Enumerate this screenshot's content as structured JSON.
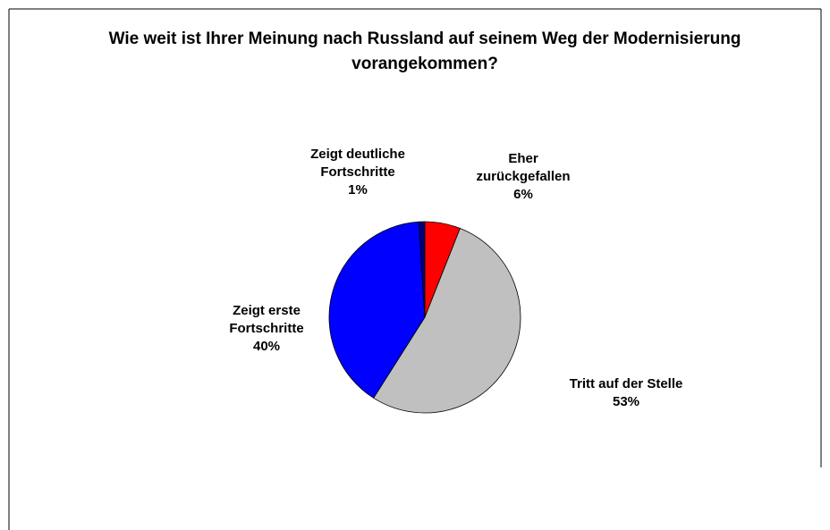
{
  "chart_data": {
    "type": "pie",
    "title": "Wie weit ist Ihrer Meinung nach Russland auf seinem Weg der Modernisierung vorangekommen?",
    "categories": [
      "Eher zurückgefallen",
      "Tritt auf der Stelle",
      "Zeigt erste Fortschritte",
      "Zeigt deutliche Fortschritte"
    ],
    "values": [
      6,
      53,
      40,
      1
    ],
    "value_labels": [
      "6%",
      "53%",
      "40%",
      "1%"
    ],
    "colors": [
      "#ff0000",
      "#c0c0c0",
      "#0000ff",
      "#000080"
    ]
  }
}
